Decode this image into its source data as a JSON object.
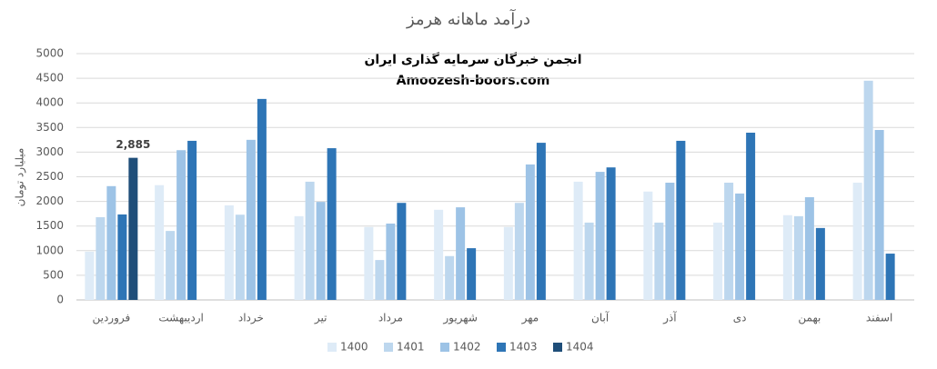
{
  "chart_data": {
    "type": "bar",
    "title": "درآمد ماهانه هرمز",
    "annotations": [
      "انجمن خبرگان سرمایه گذاری ایران",
      "Amoozesh-boors.com"
    ],
    "y_label": "میلیارد تومان",
    "categories": [
      "فروردین",
      "اردیبهشت",
      "خرداد",
      "تیر",
      "مرداد",
      "شهریور",
      "مهر",
      "آبان",
      "آذر",
      "دی",
      "بهمن",
      "اسفند"
    ],
    "series": [
      {
        "name": "1400",
        "color": "#deebf7",
        "values": [
          980,
          2330,
          1920,
          1700,
          1480,
          1830,
          1480,
          2400,
          2200,
          1570,
          1720,
          2380
        ]
      },
      {
        "name": "1401",
        "color": "#bdd7ee",
        "values": [
          1680,
          1400,
          1730,
          2400,
          810,
          890,
          1970,
          1570,
          1570,
          2380,
          1700,
          4450
        ]
      },
      {
        "name": "1402",
        "color": "#9dc3e6",
        "values": [
          2310,
          3040,
          3250,
          1990,
          1550,
          1880,
          2750,
          2600,
          2380,
          2160,
          2085,
          3450
        ]
      },
      {
        "name": "1403",
        "color": "#2e75b6",
        "values": [
          1735,
          3230,
          4080,
          3080,
          1970,
          1050,
          3190,
          2690,
          3230,
          3395,
          1460,
          940
        ]
      },
      {
        "name": "1404",
        "color": "#1f4e79",
        "values": [
          2885,
          null,
          null,
          null,
          null,
          null,
          null,
          null,
          null,
          null,
          null,
          null
        ],
        "value_labels": [
          "2,885",
          null,
          null,
          null,
          null,
          null,
          null,
          null,
          null,
          null,
          null,
          null
        ]
      }
    ],
    "ylim": [
      0,
      5000
    ],
    "yticks": [
      0,
      500,
      1000,
      1500,
      2000,
      2500,
      3000,
      3500,
      4000,
      4500,
      5000
    ],
    "grid": true,
    "legend": "bottom"
  }
}
